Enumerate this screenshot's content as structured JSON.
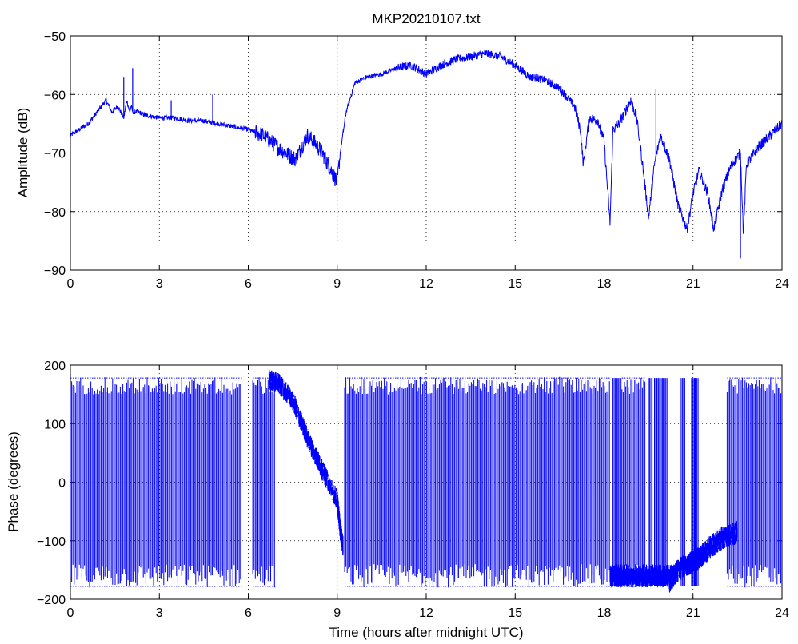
{
  "chart_data": [
    {
      "type": "line",
      "title": "MKP20210107.txt",
      "xlabel": "",
      "ylabel": "Amplitude (dB)",
      "xlim": [
        0,
        24
      ],
      "ylim": [
        -90,
        -50
      ],
      "xticks": [
        0,
        3,
        6,
        9,
        12,
        15,
        18,
        21,
        24
      ],
      "yticks": [
        -90,
        -80,
        -70,
        -60,
        -50
      ],
      "grid": true,
      "series": [
        {
          "color": "#0000ff",
          "x": [
            0,
            0.3,
            0.6,
            0.9,
            1.2,
            1.3,
            1.4,
            1.6,
            1.8,
            1.9,
            2.0,
            2.05,
            2.1,
            2.3,
            2.5,
            3.0,
            3.5,
            4.0,
            4.5,
            5.0,
            5.5,
            6.0,
            6.5,
            7.0,
            7.4,
            7.6,
            7.8,
            8.0,
            8.2,
            8.5,
            8.8,
            9.0,
            9.1,
            9.3,
            9.6,
            10.0,
            10.5,
            11.0,
            11.5,
            12.0,
            12.5,
            13.0,
            13.5,
            14.0,
            14.5,
            15.0,
            15.5,
            16.0,
            16.5,
            17.0,
            17.2,
            17.3,
            17.5,
            17.8,
            18.0,
            18.2,
            18.3,
            18.5,
            18.9,
            19.1,
            19.3,
            19.5,
            19.7,
            19.9,
            20.2,
            20.5,
            20.8,
            21.0,
            21.2,
            21.5,
            21.7,
            22.0,
            22.3,
            22.6,
            22.7,
            22.8,
            23.2,
            23.6,
            24.0
          ],
          "y": [
            -67,
            -66,
            -65,
            -63,
            -61,
            -62,
            -63,
            -62,
            -64,
            -61,
            -63,
            -62,
            -63,
            -63,
            -63.5,
            -64,
            -64,
            -64.5,
            -64.5,
            -65,
            -65.5,
            -66,
            -67,
            -69,
            -70.5,
            -71,
            -69,
            -67,
            -68,
            -70,
            -73,
            -75,
            -70,
            -63,
            -58,
            -57,
            -56.5,
            -55.5,
            -55,
            -56.5,
            -55,
            -54,
            -53.5,
            -53,
            -53.5,
            -55,
            -57,
            -57.5,
            -59,
            -62,
            -66,
            -72,
            -64,
            -64.5,
            -68,
            -82,
            -66,
            -65,
            -61,
            -64,
            -72,
            -81,
            -72,
            -67,
            -71,
            -79,
            -83,
            -77,
            -73,
            -77,
            -83,
            -76,
            -72,
            -70,
            -84,
            -72,
            -69,
            -67,
            -65
          ],
          "spikes": [
            {
              "x": 1.8,
              "y": -57
            },
            {
              "x": 2.1,
              "y": -55.5
            },
            {
              "x": 3.4,
              "y": -61
            },
            {
              "x": 4.8,
              "y": -60
            },
            {
              "x": 19.75,
              "y": -59
            },
            {
              "x": 22.6,
              "y": -88
            }
          ]
        }
      ]
    },
    {
      "type": "scatter",
      "title": "",
      "xlabel": "Time (hours after midnight UTC)",
      "ylabel": "Phase (degrees)",
      "xlim": [
        0,
        24
      ],
      "ylim": [
        -200,
        200
      ],
      "xticks": [
        0,
        3,
        6,
        9,
        12,
        15,
        18,
        21,
        24
      ],
      "yticks": [
        -200,
        -100,
        0,
        100,
        200
      ],
      "grid": true,
      "series": [
        {
          "color": "#0000ff",
          "wrapped_segments": [
            {
              "x0": 0,
              "x1": 5.75
            },
            {
              "x0": 6.15,
              "x1": 6.9
            },
            {
              "x0": 9.25,
              "x1": 18.2
            },
            {
              "x0": 18.6,
              "x1": 19.4
            },
            {
              "x0": 22.15,
              "x1": 24
            }
          ],
          "trend_x": [
            6.7,
            7.0,
            7.5,
            8.0,
            8.5,
            9.0,
            9.1,
            9.2
          ],
          "trend_y": [
            175,
            170,
            140,
            75,
            20,
            -30,
            -80,
            -110
          ],
          "settled_x": [
            20.2,
            20.5,
            21.0,
            21.2,
            21.6,
            22.0,
            22.5
          ],
          "settled_y": [
            -170,
            -150,
            -135,
            -130,
            -110,
            -95,
            -85
          ]
        }
      ]
    }
  ]
}
